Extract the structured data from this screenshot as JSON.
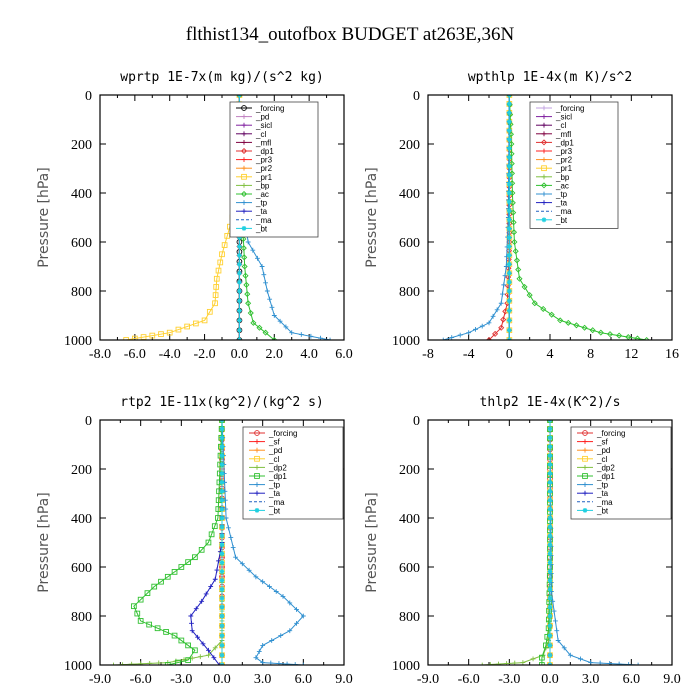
{
  "title": "flthist134_outofbox  BUDGET at263E,36N",
  "chart_data": [
    {
      "type": "line",
      "title": "wprtp  1E-7x(m kg)/(s^2 kg)",
      "ylabel": "Pressure [hPa]",
      "xlim": [
        -8.0,
        6.0
      ],
      "ylim": [
        1000,
        0
      ],
      "xticks": [
        -8.0,
        -6.0,
        -4.0,
        -2.0,
        0.0,
        2.0,
        4.0,
        6.0
      ],
      "xtick_labels": [
        "-8.0",
        "-6.0",
        "-4.0",
        "-2.0",
        "0.0",
        "2.0",
        "4.0",
        "6.0"
      ],
      "yticks": [
        0,
        200,
        400,
        600,
        800,
        1000
      ],
      "legend_position": "upper-right",
      "series": [
        {
          "name": "_forcing",
          "color": "#000000",
          "marker": "circle",
          "x": [
            0,
            0,
            0,
            0,
            0,
            0
          ],
          "y": [
            0,
            200,
            400,
            600,
            800,
            1000
          ]
        },
        {
          "name": "_pd",
          "color": "#c080c0",
          "marker": "plus",
          "x": [
            0,
            0,
            0,
            0
          ],
          "y": [
            0,
            400,
            800,
            1000
          ]
        },
        {
          "name": "_sicl",
          "color": "#8020a0",
          "marker": "plus",
          "x": [
            0,
            0,
            0,
            0
          ],
          "y": [
            0,
            400,
            800,
            1000
          ]
        },
        {
          "name": "_cl",
          "color": "#600060",
          "marker": "plus",
          "x": [
            0,
            0,
            0,
            0
          ],
          "y": [
            0,
            400,
            800,
            1000
          ]
        },
        {
          "name": "_mfl",
          "color": "#800040",
          "marker": "plus",
          "x": [
            0,
            0,
            0,
            0
          ],
          "y": [
            0,
            400,
            800,
            1000
          ]
        },
        {
          "name": "_dp1",
          "color": "#e03030",
          "marker": "diamond",
          "x": [
            0,
            0,
            0,
            0
          ],
          "y": [
            0,
            400,
            800,
            1000
          ]
        },
        {
          "name": "_pr3",
          "color": "#ff2020",
          "marker": "plus",
          "x": [
            0,
            0,
            0,
            0
          ],
          "y": [
            0,
            400,
            800,
            1000
          ]
        },
        {
          "name": "_pr2",
          "color": "#ff9020",
          "marker": "plus",
          "x": [
            0,
            0,
            0,
            0
          ],
          "y": [
            0,
            400,
            800,
            1000
          ]
        },
        {
          "name": "_pr1",
          "color": "#ffd030",
          "marker": "square",
          "x": [
            0,
            -0.1,
            -0.4,
            -1.0,
            -1.3,
            -1.4,
            -2.0,
            -4.0,
            -6.5
          ],
          "y": [
            0,
            300,
            500,
            650,
            750,
            850,
            920,
            970,
            1000
          ]
        },
        {
          "name": "_bp",
          "color": "#80c040",
          "marker": "plus",
          "x": [
            0,
            0,
            0,
            0
          ],
          "y": [
            0,
            400,
            800,
            1000
          ]
        },
        {
          "name": "_ac",
          "color": "#30c030",
          "marker": "diamond",
          "x": [
            0,
            0.1,
            0.3,
            0.5,
            0.8,
            1.5,
            2.0
          ],
          "y": [
            0,
            400,
            700,
            850,
            930,
            970,
            1000
          ]
        },
        {
          "name": "_tp",
          "color": "#3090d0",
          "marker": "plus",
          "x": [
            0,
            0.1,
            0.3,
            0.5,
            1.3,
            1.6,
            2.0,
            3.0,
            5.2
          ],
          "y": [
            0,
            300,
            500,
            600,
            700,
            800,
            900,
            970,
            1000
          ]
        },
        {
          "name": "_ta",
          "color": "#2020c0",
          "marker": "plus",
          "x": [
            0,
            0,
            0,
            0
          ],
          "y": [
            0,
            400,
            800,
            1000
          ]
        },
        {
          "name": "_ma",
          "color": "#2060c0",
          "marker": "none",
          "x": [
            0,
            0,
            0,
            0
          ],
          "y": [
            0,
            400,
            800,
            1000
          ]
        },
        {
          "name": "_bt",
          "color": "#20d0e0",
          "marker": "star",
          "x": [
            0,
            0,
            0,
            0
          ],
          "y": [
            0,
            400,
            800,
            1000
          ]
        }
      ]
    },
    {
      "type": "line",
      "title": "wpthlp  1E-4x(m K)/s^2",
      "ylabel": "Pressure [hPa]",
      "xlim": [
        -8,
        16
      ],
      "ylim": [
        1000,
        0
      ],
      "xticks": [
        -8,
        -4,
        0,
        4,
        8,
        12,
        16
      ],
      "xtick_labels": [
        "-8",
        "-4",
        "0",
        "4",
        "8",
        "12",
        "16"
      ],
      "yticks": [
        0,
        200,
        400,
        600,
        800,
        1000
      ],
      "legend_position": "upper-right",
      "series": [
        {
          "name": "_forcing",
          "color": "#c0a0e0",
          "marker": "plus",
          "x": [
            0,
            0,
            0,
            0
          ],
          "y": [
            0,
            400,
            800,
            1000
          ]
        },
        {
          "name": "_sicl",
          "color": "#8020a0",
          "marker": "plus",
          "x": [
            0,
            0,
            0,
            0
          ],
          "y": [
            0,
            400,
            800,
            1000
          ]
        },
        {
          "name": "_cl",
          "color": "#600060",
          "marker": "plus",
          "x": [
            0,
            0,
            0,
            0
          ],
          "y": [
            0,
            400,
            800,
            1000
          ]
        },
        {
          "name": "_mfl",
          "color": "#800040",
          "marker": "plus",
          "x": [
            0,
            0,
            0,
            0
          ],
          "y": [
            0,
            400,
            800,
            1000
          ]
        },
        {
          "name": "_dp1",
          "color": "#e03030",
          "marker": "diamond",
          "x": [
            0,
            0,
            -0.2,
            -0.8,
            -2.0
          ],
          "y": [
            0,
            600,
            850,
            950,
            1000
          ]
        },
        {
          "name": "_pr3",
          "color": "#ff2020",
          "marker": "plus",
          "x": [
            0,
            0,
            0,
            0
          ],
          "y": [
            0,
            400,
            800,
            1000
          ]
        },
        {
          "name": "_pr2",
          "color": "#ff9020",
          "marker": "plus",
          "x": [
            0,
            0,
            0,
            0
          ],
          "y": [
            0,
            400,
            800,
            1000
          ]
        },
        {
          "name": "_pr1",
          "color": "#ffd030",
          "marker": "square",
          "x": [
            0,
            0,
            0,
            0
          ],
          "y": [
            0,
            400,
            800,
            1000
          ]
        },
        {
          "name": "_bp",
          "color": "#80c040",
          "marker": "plus",
          "x": [
            0,
            0,
            0,
            0
          ],
          "y": [
            0,
            400,
            800,
            1000
          ]
        },
        {
          "name": "_ac",
          "color": "#30c030",
          "marker": "diamond",
          "x": [
            0,
            0.2,
            0.3,
            0.5,
            1.0,
            2.5,
            5.0,
            9.0,
            13.5
          ],
          "y": [
            0,
            200,
            400,
            600,
            750,
            850,
            920,
            970,
            1000
          ]
        },
        {
          "name": "_tp",
          "color": "#3090d0",
          "marker": "plus",
          "x": [
            0,
            -0.1,
            -0.3,
            -0.8,
            -2.0,
            -4.0,
            -6.5
          ],
          "y": [
            0,
            500,
            700,
            850,
            930,
            970,
            1000
          ]
        },
        {
          "name": "_ta",
          "color": "#2020c0",
          "marker": "plus",
          "x": [
            0,
            0,
            0,
            0
          ],
          "y": [
            0,
            400,
            800,
            1000
          ]
        },
        {
          "name": "_ma",
          "color": "#2060c0",
          "marker": "none",
          "x": [
            0,
            0,
            0,
            0
          ],
          "y": [
            0,
            400,
            800,
            1000
          ]
        },
        {
          "name": "_bt",
          "color": "#20d0e0",
          "marker": "star",
          "x": [
            0,
            0,
            0,
            0
          ],
          "y": [
            0,
            400,
            800,
            1000
          ]
        }
      ]
    },
    {
      "type": "line",
      "title": "rtp2  1E-11x(kg^2)/(kg^2 s)",
      "ylabel": "Pressure [hPa]",
      "xlim": [
        -9.0,
        9.0
      ],
      "ylim": [
        1000,
        0
      ],
      "xticks": [
        -9.0,
        -6.0,
        -3.0,
        0.0,
        3.0,
        6.0,
        9.0
      ],
      "xtick_labels": [
        "-9.0",
        "-6.0",
        "-3.0",
        "0.0",
        "3.0",
        "6.0",
        "9.0"
      ],
      "yticks": [
        0,
        200,
        400,
        600,
        800,
        1000
      ],
      "legend_position": "upper-right",
      "series": [
        {
          "name": "_forcing",
          "color": "#e03030",
          "marker": "circle",
          "x": [
            0,
            0,
            0,
            0,
            0,
            0
          ],
          "y": [
            0,
            200,
            400,
            600,
            800,
            1000
          ]
        },
        {
          "name": "_sf",
          "color": "#ff2020",
          "marker": "plus",
          "x": [
            0,
            0,
            0,
            0,
            0,
            0
          ],
          "y": [
            0,
            200,
            400,
            600,
            800,
            1000
          ]
        },
        {
          "name": "_pd",
          "color": "#ff9020",
          "marker": "plus",
          "x": [
            0,
            0,
            0,
            0
          ],
          "y": [
            0,
            400,
            800,
            1000
          ]
        },
        {
          "name": "_cl",
          "color": "#ffd030",
          "marker": "square",
          "x": [
            0,
            0,
            0,
            0
          ],
          "y": [
            0,
            400,
            800,
            1000
          ]
        },
        {
          "name": "_dp2",
          "color": "#80c040",
          "marker": "plus",
          "x": [
            0,
            0,
            0,
            -1.0,
            -4.0,
            -8.0
          ],
          "y": [
            0,
            700,
            900,
            960,
            990,
            1000
          ]
        },
        {
          "name": "_dp1",
          "color": "#30c030",
          "marker": "square",
          "x": [
            0,
            -0.3,
            -1.0,
            -2.0,
            -3.5,
            -5.0,
            -6.5,
            -6.0,
            -3.5,
            -2.0,
            -2.5,
            -4.0
          ],
          "y": [
            0,
            400,
            500,
            560,
            620,
            680,
            760,
            820,
            880,
            940,
            980,
            1000
          ]
        },
        {
          "name": "_tp",
          "color": "#3090d0",
          "marker": "plus",
          "x": [
            0,
            0.3,
            1.0,
            2.5,
            4.5,
            6.0,
            5.0,
            3.0,
            2.5,
            3.0,
            6.0
          ],
          "y": [
            0,
            400,
            560,
            640,
            720,
            800,
            860,
            920,
            970,
            990,
            1000
          ]
        },
        {
          "name": "_ta",
          "color": "#2020c0",
          "marker": "plus",
          "x": [
            0,
            0,
            -0.5,
            -1.5,
            -2.3,
            -2.2,
            -1.0,
            -0.2
          ],
          "y": [
            0,
            500,
            650,
            740,
            800,
            860,
            940,
            1000
          ]
        },
        {
          "name": "_ma",
          "color": "#2060c0",
          "marker": "none",
          "x": [
            0,
            0,
            0,
            0
          ],
          "y": [
            0,
            400,
            800,
            1000
          ]
        },
        {
          "name": "_bt",
          "color": "#20d0e0",
          "marker": "star",
          "x": [
            0,
            0,
            0,
            0
          ],
          "y": [
            0,
            400,
            800,
            1000
          ]
        }
      ]
    },
    {
      "type": "line",
      "title": "thlp2  1E-4x(K^2)/s",
      "ylabel": "Pressure [hPa]",
      "xlim": [
        -9.0,
        9.0
      ],
      "ylim": [
        1000,
        0
      ],
      "xticks": [
        -9.0,
        -6.0,
        -3.0,
        0.0,
        3.0,
        6.0,
        9.0
      ],
      "xtick_labels": [
        "-9.0",
        "-6.0",
        "-3.0",
        "0.0",
        "3.0",
        "6.0",
        "9.0"
      ],
      "yticks": [
        0,
        200,
        400,
        600,
        800,
        1000
      ],
      "legend_position": "upper-right",
      "series": [
        {
          "name": "_forcing",
          "color": "#e03030",
          "marker": "circle",
          "x": [
            0,
            0,
            0,
            0,
            0,
            0
          ],
          "y": [
            0,
            200,
            400,
            600,
            800,
            1000
          ]
        },
        {
          "name": "_sf",
          "color": "#ff2020",
          "marker": "plus",
          "x": [
            0,
            0,
            0,
            0
          ],
          "y": [
            0,
            400,
            800,
            1000
          ]
        },
        {
          "name": "_pd",
          "color": "#ff9020",
          "marker": "plus",
          "x": [
            0,
            0,
            0,
            0
          ],
          "y": [
            0,
            400,
            800,
            1000
          ]
        },
        {
          "name": "_cl",
          "color": "#ffd030",
          "marker": "square",
          "x": [
            0,
            0,
            0,
            0
          ],
          "y": [
            0,
            400,
            800,
            1000
          ]
        },
        {
          "name": "_dp2",
          "color": "#80c040",
          "marker": "plus",
          "x": [
            0,
            0,
            -0.1,
            -0.5,
            -2.0,
            -5.0
          ],
          "y": [
            0,
            700,
            900,
            960,
            990,
            1000
          ]
        },
        {
          "name": "_dp1",
          "color": "#30c030",
          "marker": "square",
          "x": [
            0,
            0,
            -0.1,
            -0.3,
            -0.6,
            -0.6
          ],
          "y": [
            0,
            600,
            850,
            920,
            970,
            1000
          ]
        },
        {
          "name": "_tp",
          "color": "#3090d0",
          "marker": "plus",
          "x": [
            0,
            0.1,
            0.6,
            1.5,
            3.0,
            6.5
          ],
          "y": [
            0,
            700,
            900,
            960,
            990,
            1000
          ]
        },
        {
          "name": "_ta",
          "color": "#2020c0",
          "marker": "plus",
          "x": [
            0,
            0,
            0,
            0
          ],
          "y": [
            0,
            400,
            800,
            1000
          ]
        },
        {
          "name": "_ma",
          "color": "#2060c0",
          "marker": "none",
          "x": [
            0,
            0,
            0,
            0
          ],
          "y": [
            0,
            400,
            800,
            1000
          ]
        },
        {
          "name": "_bt",
          "color": "#20d0e0",
          "marker": "star",
          "x": [
            0,
            0,
            0,
            0
          ],
          "y": [
            0,
            400,
            800,
            1000
          ]
        }
      ]
    }
  ]
}
